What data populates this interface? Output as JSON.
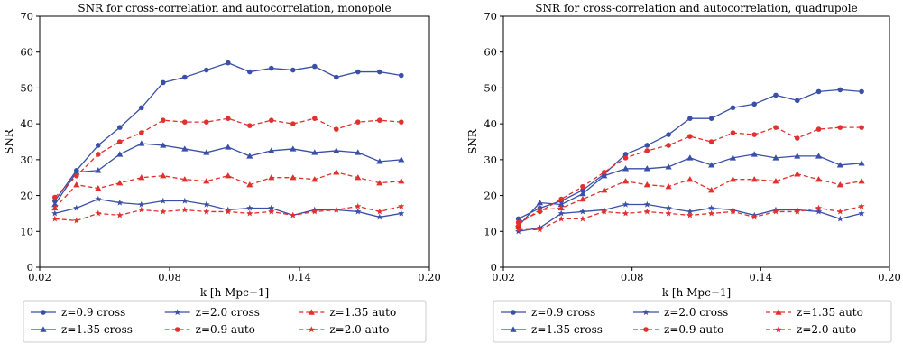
{
  "chart_data": [
    {
      "type": "line",
      "title": "SNR for cross-correlation and autocorrelation, monopole",
      "xlabel": "k [h Mpc−1]",
      "ylabel": "SNR",
      "xlim": [
        0.02,
        0.2
      ],
      "ylim": [
        0,
        70
      ],
      "xticks": [
        "0.02",
        "0.08",
        "0.14",
        "0.20"
      ],
      "yticks": [
        "0",
        "10",
        "20",
        "30",
        "40",
        "50",
        "60",
        "70"
      ],
      "grid": false,
      "legend_position": "below",
      "x": [
        0.027,
        0.037,
        0.047,
        0.057,
        0.067,
        0.077,
        0.087,
        0.097,
        0.107,
        0.117,
        0.127,
        0.137,
        0.147,
        0.157,
        0.167,
        0.177,
        0.187
      ],
      "series": [
        {
          "name": "z=0.9 cross",
          "color": "#3a4fa6",
          "dash": "solid",
          "marker": "circle",
          "values": [
            18.5,
            27.0,
            34.0,
            39.0,
            44.5,
            51.5,
            53.0,
            55.0,
            57.0,
            54.5,
            55.5,
            55.0,
            56.0,
            53.0,
            54.5,
            54.5,
            53.5
          ]
        },
        {
          "name": "z=1.35 cross",
          "color": "#3a4fa6",
          "dash": "solid",
          "marker": "triangle",
          "values": [
            17.5,
            26.5,
            27.0,
            31.5,
            34.5,
            34.0,
            33.0,
            32.0,
            33.5,
            31.0,
            32.5,
            33.0,
            32.0,
            32.5,
            32.0,
            29.5,
            30.0
          ]
        },
        {
          "name": "z=2.0 cross",
          "color": "#3a4fa6",
          "dash": "solid",
          "marker": "star",
          "values": [
            15.0,
            16.5,
            19.0,
            18.0,
            17.5,
            18.5,
            18.5,
            17.5,
            16.0,
            16.5,
            16.5,
            14.5,
            16.0,
            16.0,
            15.5,
            14.0,
            15.0
          ]
        },
        {
          "name": "z=0.9 auto",
          "color": "#e0312f",
          "dash": "dashed",
          "marker": "circle",
          "values": [
            19.5,
            25.5,
            31.5,
            35.0,
            37.5,
            41.0,
            40.5,
            40.5,
            41.5,
            39.5,
            41.0,
            40.0,
            41.5,
            38.5,
            40.5,
            41.0,
            40.5
          ]
        },
        {
          "name": "z=1.35 auto",
          "color": "#e0312f",
          "dash": "dashed",
          "marker": "triangle",
          "values": [
            16.5,
            23.0,
            22.0,
            23.5,
            25.0,
            25.5,
            24.5,
            24.0,
            25.5,
            23.0,
            25.0,
            25.0,
            24.5,
            26.5,
            25.0,
            23.5,
            24.0
          ]
        },
        {
          "name": "z=2.0 auto",
          "color": "#e0312f",
          "dash": "dashed",
          "marker": "star",
          "values": [
            13.5,
            13.0,
            15.0,
            14.5,
            16.0,
            15.5,
            16.0,
            15.5,
            15.5,
            15.0,
            15.5,
            14.5,
            15.5,
            16.0,
            17.0,
            15.5,
            17.0
          ]
        }
      ]
    },
    {
      "type": "line",
      "title": "SNR for cross-correlation and autocorrelation, quadrupole",
      "xlabel": "k [h Mpc−1]",
      "ylabel": "SNR",
      "xlim": [
        0.02,
        0.2
      ],
      "ylim": [
        0,
        70
      ],
      "xticks": [
        "0.02",
        "0.08",
        "0.14",
        "0.20"
      ],
      "yticks": [
        "0",
        "10",
        "20",
        "30",
        "40",
        "50",
        "60",
        "70"
      ],
      "grid": false,
      "legend_position": "below",
      "x": [
        0.027,
        0.037,
        0.047,
        0.057,
        0.067,
        0.077,
        0.087,
        0.097,
        0.107,
        0.117,
        0.127,
        0.137,
        0.147,
        0.157,
        0.167,
        0.177,
        0.187
      ],
      "series": [
        {
          "name": "z=0.9 cross",
          "color": "#3a4fa6",
          "dash": "solid",
          "marker": "circle",
          "values": [
            13.5,
            16.5,
            18.5,
            21.5,
            26.0,
            31.5,
            34.0,
            37.0,
            41.5,
            41.5,
            44.5,
            45.5,
            48.0,
            46.5,
            49.0,
            49.5,
            49.0
          ]
        },
        {
          "name": "z=1.35 cross",
          "color": "#3a4fa6",
          "dash": "solid",
          "marker": "triangle",
          "values": [
            11.5,
            18.0,
            17.5,
            20.5,
            25.5,
            27.5,
            27.5,
            28.0,
            30.5,
            28.5,
            30.5,
            31.5,
            30.5,
            31.0,
            31.0,
            28.5,
            29.0
          ]
        },
        {
          "name": "z=2.0 cross",
          "color": "#3a4fa6",
          "dash": "solid",
          "marker": "star",
          "values": [
            10.0,
            11.0,
            15.0,
            15.5,
            16.0,
            17.5,
            17.5,
            16.5,
            15.5,
            16.5,
            16.0,
            14.5,
            16.0,
            16.0,
            15.5,
            13.5,
            15.0
          ]
        },
        {
          "name": "z=0.9 auto",
          "color": "#e0312f",
          "dash": "dashed",
          "marker": "circle",
          "values": [
            12.5,
            15.5,
            19.0,
            22.5,
            26.5,
            30.5,
            32.5,
            34.0,
            36.5,
            35.0,
            37.5,
            37.0,
            39.0,
            36.0,
            38.5,
            39.0,
            39.0
          ]
        },
        {
          "name": "z=1.35 auto",
          "color": "#e0312f",
          "dash": "dashed",
          "marker": "triangle",
          "values": [
            12.0,
            16.0,
            16.5,
            19.0,
            21.5,
            24.0,
            23.0,
            22.5,
            24.5,
            21.5,
            24.5,
            24.5,
            24.0,
            26.0,
            24.5,
            23.0,
            24.0
          ]
        },
        {
          "name": "z=2.0 auto",
          "color": "#e0312f",
          "dash": "dashed",
          "marker": "star",
          "values": [
            10.5,
            10.5,
            13.5,
            13.5,
            15.5,
            15.0,
            15.5,
            15.0,
            14.5,
            15.0,
            15.5,
            14.0,
            15.5,
            15.5,
            16.5,
            15.5,
            17.0
          ]
        }
      ]
    }
  ]
}
